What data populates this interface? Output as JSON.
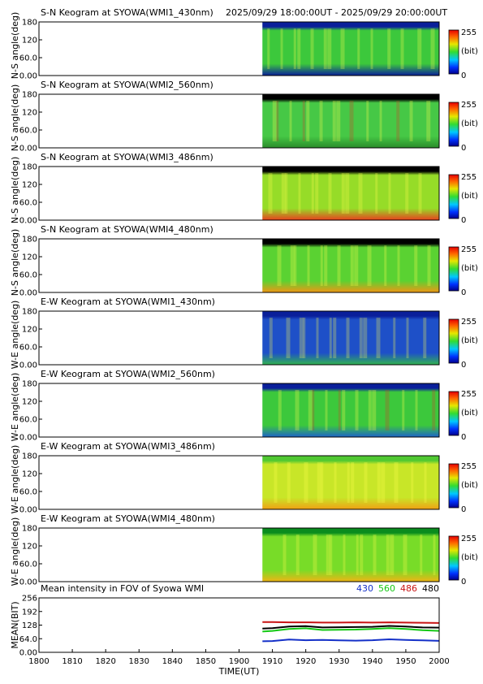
{
  "header": {
    "time_range": "2025/09/29 18:00:00UT - 2025/09/29 20:00:00UT"
  },
  "colorbar": {
    "max_label": "255",
    "unit_label": "(bit)",
    "min_label": "0"
  },
  "chart_data": [
    {
      "type": "heatmap",
      "title": "S-N Keogram at SYOWA(WMI1_430nm)",
      "ylabel": "N-S angle(deg)",
      "yticks": [
        "180",
        "120",
        "60.0",
        "0.00"
      ],
      "ylim": [
        0,
        180
      ],
      "data_start": "19:07",
      "base_color": "#3cc83c",
      "edge_top_color": "#0a1f9a",
      "edge_bottom_color": "#0a1f9a"
    },
    {
      "type": "heatmap",
      "title": "S-N Keogram at SYOWA(WMI2_560nm)",
      "ylabel": "N-S angle(deg)",
      "yticks": [
        "180",
        "120",
        "60.0",
        "0.00"
      ],
      "ylim": [
        0,
        180
      ],
      "data_start": "19:07",
      "base_color": "#46c846",
      "edge_top_color": "#000000",
      "edge_bottom_color": "#2a8c2a"
    },
    {
      "type": "heatmap",
      "title": "S-N Keogram at SYOWA(WMI3_486nm)",
      "ylabel": "N-S angle(deg)",
      "yticks": [
        "180",
        "120",
        "60.0",
        "0.00"
      ],
      "ylim": [
        0,
        180
      ],
      "data_start": "19:07",
      "base_color": "#96dc28",
      "edge_top_color": "#000000",
      "edge_bottom_color": "#e8401e"
    },
    {
      "type": "heatmap",
      "title": "S-N Keogram at SYOWA(WMI4_480nm)",
      "ylabel": "N-S angle(deg)",
      "yticks": [
        "180",
        "120",
        "60.0",
        "0.00"
      ],
      "ylim": [
        0,
        180
      ],
      "data_start": "19:07",
      "base_color": "#5ad232",
      "edge_top_color": "#000000",
      "edge_bottom_color": "#f09614"
    },
    {
      "type": "heatmap",
      "title": "E-W Keogram at SYOWA(WMI1_430nm)",
      "ylabel": "W-E angle(deg)",
      "yticks": [
        "180",
        "120",
        "60.0",
        "0.00"
      ],
      "ylim": [
        0,
        180
      ],
      "data_start": "19:07",
      "base_color": "#1e50c8",
      "edge_top_color": "#0a1f9a",
      "edge_bottom_color": "#32b450"
    },
    {
      "type": "heatmap",
      "title": "E-W Keogram at SYOWA(WMI2_560nm)",
      "ylabel": "W-E angle(deg)",
      "yticks": [
        "180",
        "120",
        "60.0",
        "0.00"
      ],
      "ylim": [
        0,
        180
      ],
      "data_start": "19:07",
      "base_color": "#3cc83c",
      "edge_top_color": "#0a1f9a",
      "edge_bottom_color": "#1e64c8"
    },
    {
      "type": "heatmap",
      "title": "E-W Keogram at SYOWA(WMI3_486nm)",
      "ylabel": "W-E angle(deg)",
      "yticks": [
        "180",
        "120",
        "60.0",
        "0.00"
      ],
      "ylim": [
        0,
        180
      ],
      "data_start": "19:07",
      "base_color": "#c8e628",
      "edge_top_color": "#50c832",
      "edge_bottom_color": "#f0a014"
    },
    {
      "type": "heatmap",
      "title": "E-W Keogram at SYOWA(WMI4_480nm)",
      "ylabel": "W-E angle(deg)",
      "yticks": [
        "180",
        "120",
        "60.0",
        "0.00"
      ],
      "ylim": [
        0,
        180
      ],
      "data_start": "19:07",
      "base_color": "#78dc28",
      "edge_top_color": "#0a8c1e",
      "edge_bottom_color": "#f0b414"
    },
    {
      "type": "line",
      "title": "Mean intensity in FOV of Syowa WMI",
      "ylabel": "MEAN(BIT)",
      "xlabel": "TIME(UT)",
      "yticks": [
        "256",
        "192",
        "128",
        "64.0",
        "0.00"
      ],
      "ylim": [
        0,
        256
      ],
      "xticks": [
        "1800",
        "1810",
        "1820",
        "1830",
        "1840",
        "1850",
        "1900",
        "1910",
        "1920",
        "1930",
        "1940",
        "1950",
        "2000"
      ],
      "x_minutes_after_1800": [
        67,
        70,
        75,
        80,
        85,
        90,
        95,
        100,
        105,
        110,
        115,
        120
      ],
      "series": [
        {
          "name": "430",
          "color": "#1430c8",
          "values": [
            52,
            53,
            60,
            57,
            58,
            56,
            55,
            57,
            61,
            58,
            56,
            54
          ]
        },
        {
          "name": "560",
          "color": "#14c814",
          "values": [
            98,
            101,
            110,
            113,
            105,
            106,
            107,
            110,
            114,
            110,
            104,
            101
          ]
        },
        {
          "name": "486",
          "color": "#c81414",
          "values": [
            142,
            142,
            141,
            141,
            140,
            140,
            141,
            140,
            141,
            140,
            139,
            138
          ]
        },
        {
          "name": "480",
          "color": "#000000",
          "values": [
            112,
            114,
            121,
            123,
            117,
            118,
            119,
            120,
            124,
            121,
            117,
            116
          ]
        }
      ]
    }
  ]
}
